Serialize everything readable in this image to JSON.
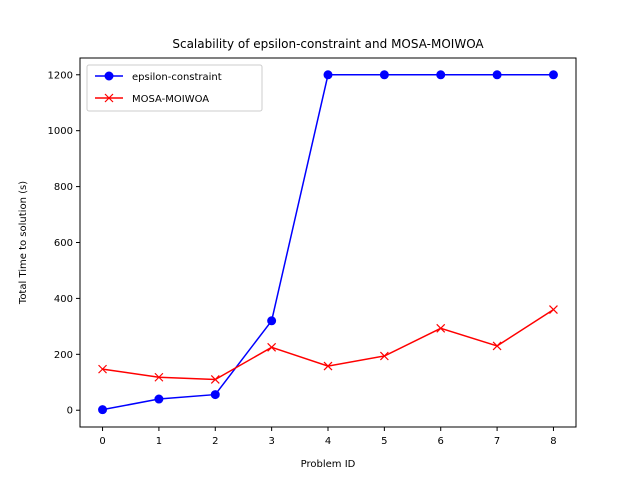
{
  "chart_data": {
    "type": "line",
    "title": "Scalability of epsilon-constraint and MOSA-MOIWOA",
    "xlabel": "Problem ID",
    "ylabel": "Total Time to solution (s)",
    "x": [
      0,
      1,
      2,
      3,
      4,
      5,
      6,
      7,
      8
    ],
    "xlim": [
      -0.4,
      8.4
    ],
    "ylim": [
      -60,
      1260
    ],
    "xticks": [
      0,
      1,
      2,
      3,
      4,
      5,
      6,
      7,
      8
    ],
    "yticks": [
      0,
      200,
      400,
      600,
      800,
      1000,
      1200
    ],
    "grid": false,
    "legend_position": "upper-left",
    "series": [
      {
        "name": "epsilon-constraint",
        "color": "#0000ff",
        "marker": "circle",
        "values": [
          2,
          40,
          56,
          320,
          1200,
          1200,
          1200,
          1200,
          1200
        ]
      },
      {
        "name": "MOSA-MOIWOA",
        "color": "#ff0000",
        "marker": "x",
        "values": [
          147,
          118,
          110,
          225,
          158,
          194,
          293,
          230,
          360
        ]
      }
    ]
  }
}
